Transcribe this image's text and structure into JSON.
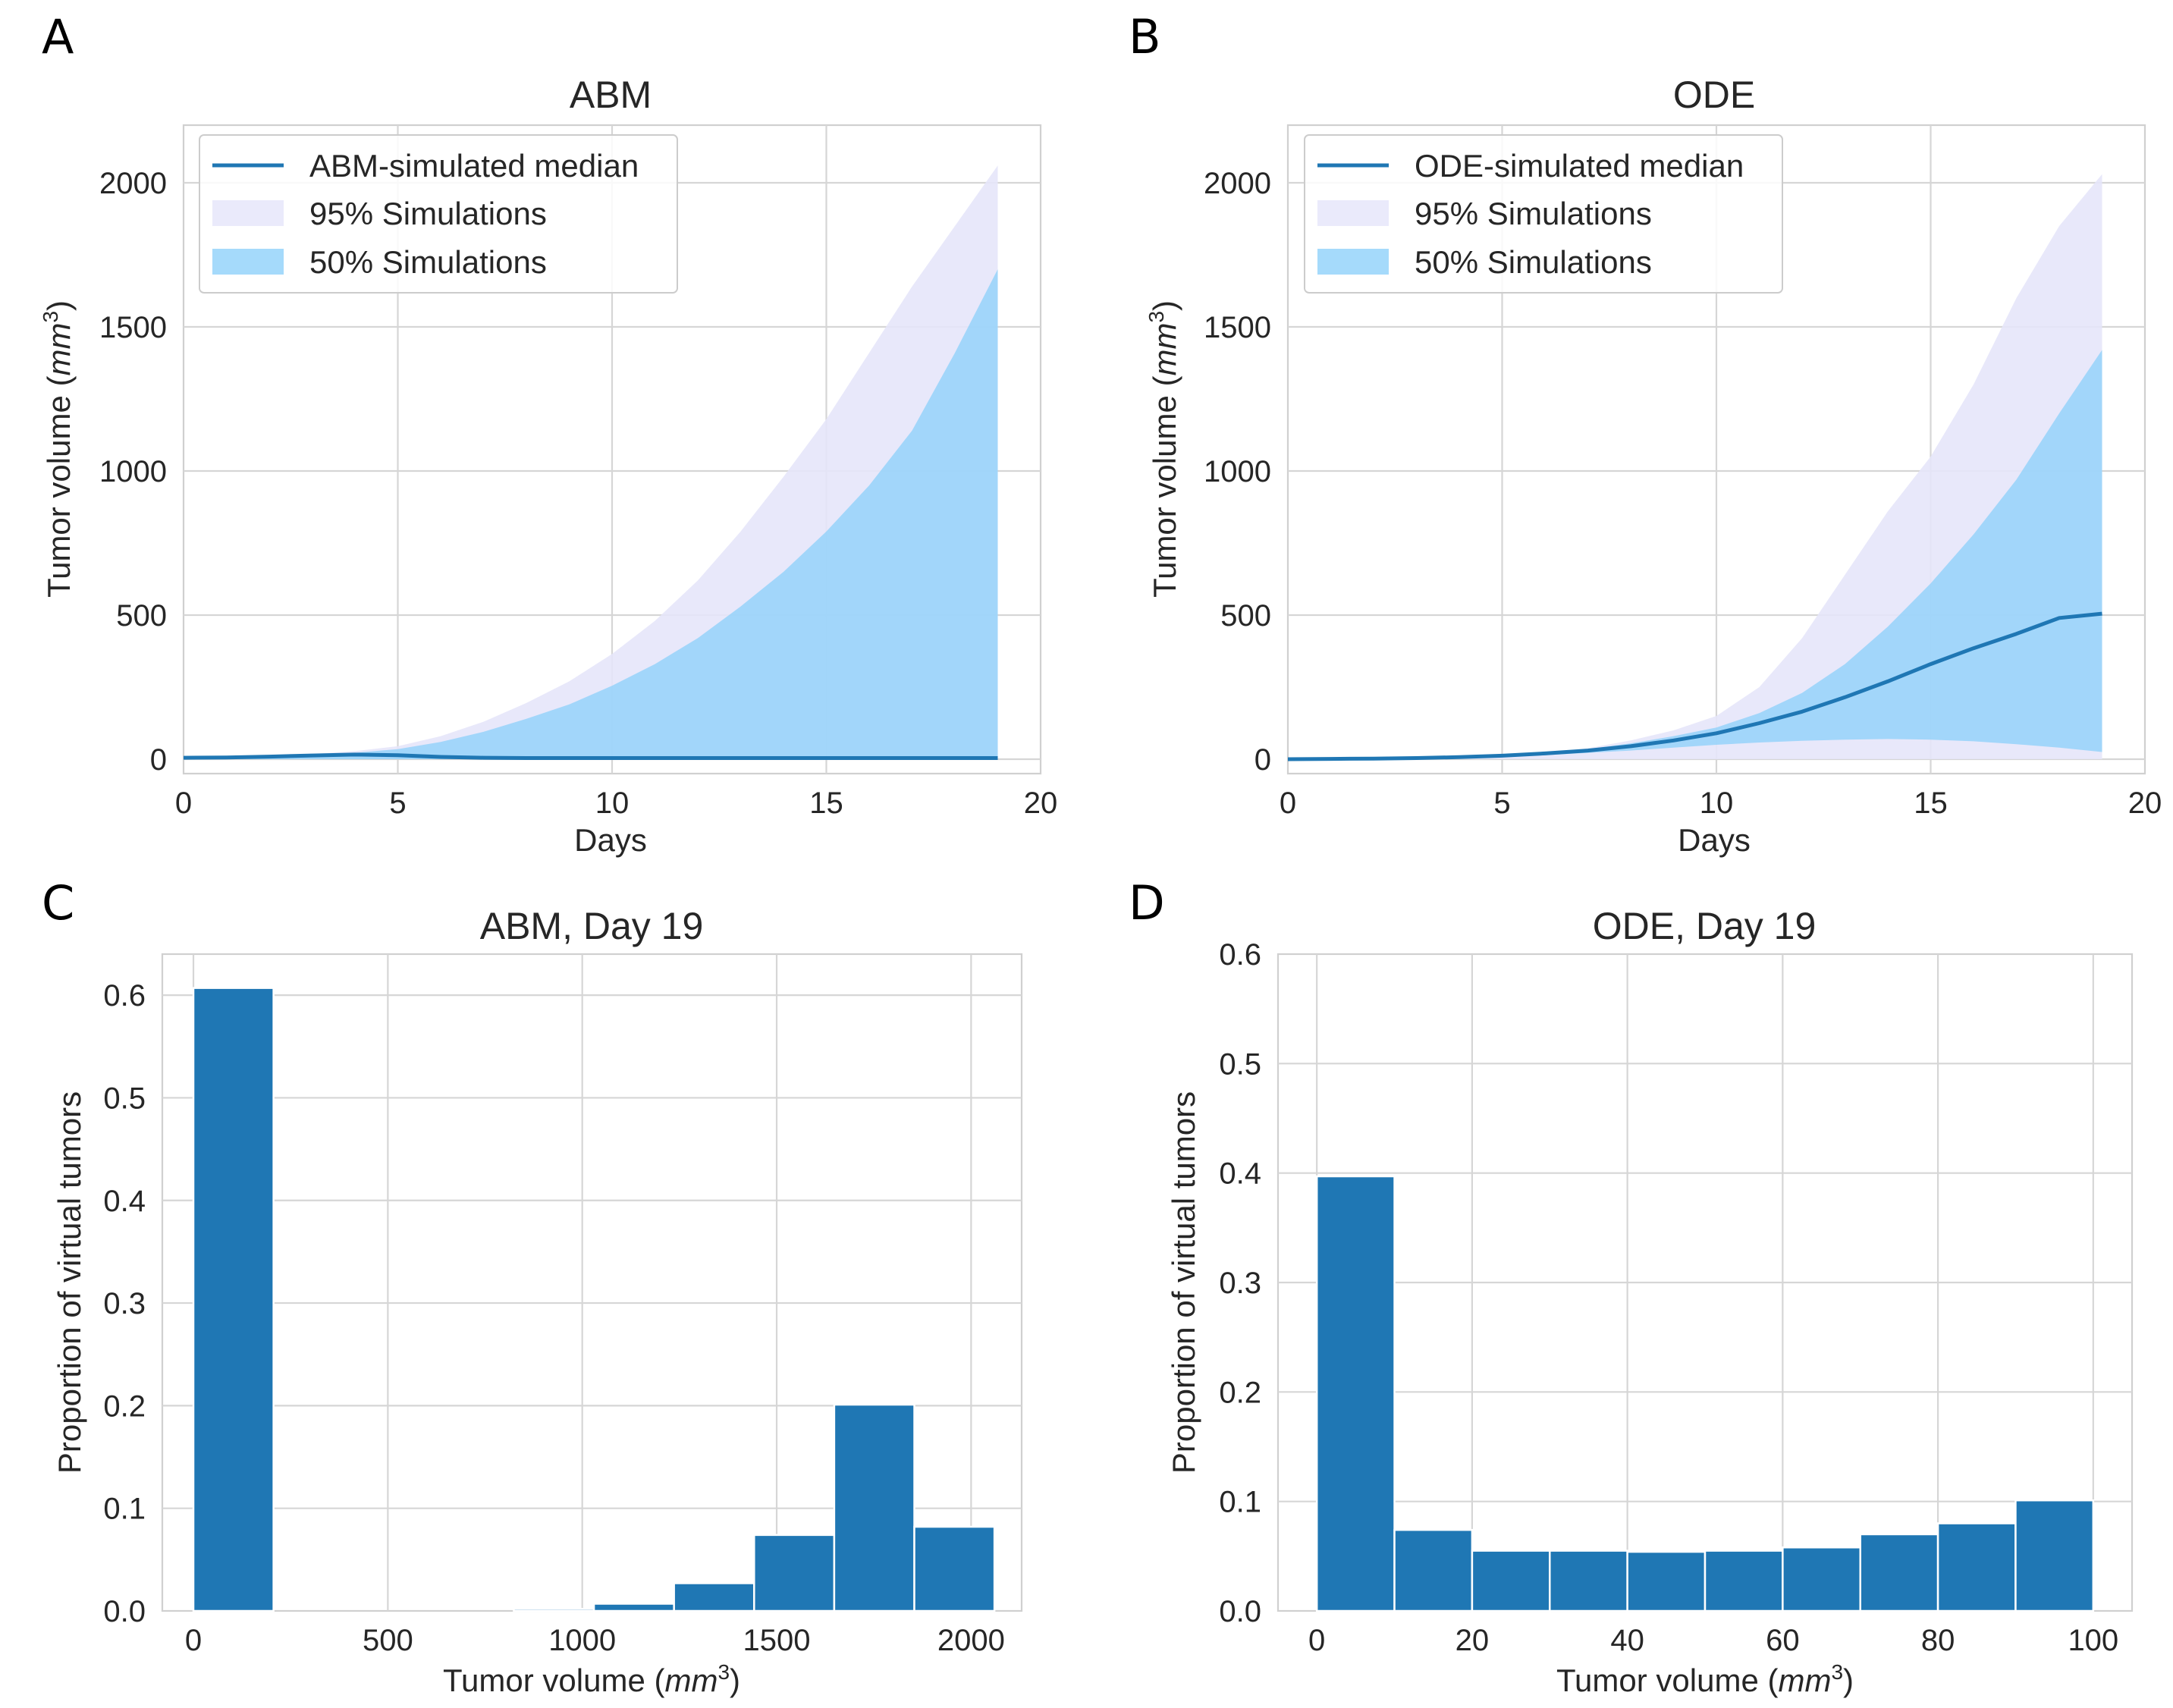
{
  "chart_data": [
    {
      "panel": "A",
      "type": "line",
      "title": "ABM",
      "xlabel": "Days",
      "ylabel_main": "Tumor volume (",
      "ylabel_unit": "mm",
      "ylabel_exp": "3",
      "ylabel_close": ")",
      "xlim": [
        0,
        20
      ],
      "ylim": [
        -50,
        2200
      ],
      "xticks": [
        0,
        5,
        10,
        15,
        20
      ],
      "xtick_labels": [
        "0",
        "5",
        "10",
        "15",
        "20"
      ],
      "yticks": [
        0,
        500,
        1000,
        1500,
        2000
      ],
      "ytick_labels": [
        "0",
        "500",
        "1000",
        "1500",
        "2000"
      ],
      "legend": [
        "ABM-simulated median",
        "95% Simulations",
        "50% Simulations"
      ],
      "legend_position": "upper-left",
      "x": [
        0,
        1,
        2,
        3,
        4,
        5,
        6,
        7,
        8,
        9,
        10,
        11,
        12,
        13,
        14,
        15,
        16,
        17,
        18,
        19
      ],
      "median": [
        5,
        6,
        9,
        13,
        16,
        14,
        8,
        5,
        4,
        4,
        4,
        4,
        4,
        4,
        4,
        4,
        4,
        4,
        4,
        4
      ],
      "band95": {
        "low": [
          0,
          0,
          0,
          0,
          0,
          0,
          0,
          0,
          0,
          0,
          0,
          0,
          0,
          0,
          0,
          0,
          0,
          0,
          0,
          0
        ],
        "high": [
          5,
          7,
          11,
          18,
          28,
          45,
          80,
          130,
          195,
          270,
          365,
          480,
          620,
          790,
          980,
          1180,
          1410,
          1640,
          1850,
          2060
        ]
      },
      "band50": {
        "low": [
          0,
          0,
          0,
          0,
          0,
          0,
          0,
          0,
          0,
          0,
          0,
          0,
          0,
          0,
          0,
          0,
          0,
          0,
          0,
          0
        ],
        "high": [
          5,
          7,
          10,
          15,
          22,
          35,
          60,
          95,
          140,
          190,
          255,
          330,
          420,
          530,
          650,
          790,
          950,
          1140,
          1410,
          1700
        ]
      },
      "colors": {
        "median": "#1f77b4",
        "band95": "#e6e6fa",
        "band50": "#87cefa"
      }
    },
    {
      "panel": "B",
      "type": "line",
      "title": "ODE",
      "xlabel": "Days",
      "ylabel_main": "Tumor volume (",
      "ylabel_unit": "mm",
      "ylabel_exp": "3",
      "ylabel_close": ")",
      "xlim": [
        0,
        20
      ],
      "ylim": [
        -50,
        2200
      ],
      "xticks": [
        0,
        5,
        10,
        15,
        20
      ],
      "xtick_labels": [
        "0",
        "5",
        "10",
        "15",
        "20"
      ],
      "yticks": [
        0,
        500,
        1000,
        1500,
        2000
      ],
      "ytick_labels": [
        "0",
        "500",
        "1000",
        "1500",
        "2000"
      ],
      "legend": [
        "ODE-simulated median",
        "95% Simulations",
        "50% Simulations"
      ],
      "legend_position": "upper-left",
      "x": [
        0,
        1,
        2,
        3,
        4,
        5,
        6,
        7,
        8,
        9,
        10,
        11,
        12,
        13,
        14,
        15,
        16,
        17,
        18,
        19
      ],
      "median": [
        0,
        1,
        2,
        4,
        7,
        12,
        20,
        30,
        45,
        65,
        90,
        125,
        165,
        215,
        270,
        330,
        385,
        435,
        490,
        505
      ],
      "band95": {
        "low": [
          0,
          0,
          0,
          0,
          0,
          0,
          0,
          0,
          0,
          0,
          0,
          0,
          0,
          0,
          0,
          0,
          0,
          0,
          0,
          0
        ],
        "high": [
          0,
          1,
          2,
          4,
          8,
          13,
          22,
          38,
          65,
          100,
          150,
          250,
          420,
          640,
          860,
          1050,
          1300,
          1600,
          1850,
          2030
        ]
      },
      "band50": {
        "low": [
          0,
          0,
          1,
          2,
          4,
          8,
          14,
          22,
          30,
          40,
          50,
          58,
          64,
          68,
          70,
          68,
          62,
          52,
          40,
          25
        ],
        "high": [
          0,
          1,
          2,
          4,
          7,
          12,
          20,
          35,
          55,
          80,
          110,
          160,
          230,
          330,
          460,
          610,
          780,
          970,
          1200,
          1420
        ]
      },
      "colors": {
        "median": "#1f77b4",
        "band95": "#e6e6fa",
        "band50": "#87cefa"
      }
    },
    {
      "panel": "C",
      "type": "bar",
      "title": "ABM, Day 19",
      "xlabel_main": "Tumor volume (",
      "xlabel_unit": "mm",
      "xlabel_exp": "3",
      "xlabel_close": ")",
      "ylabel": "Proportion of virtual tumors",
      "xlim": [
        -80,
        2130
      ],
      "ylim": [
        0,
        0.64
      ],
      "xticks": [
        0,
        500,
        1000,
        1500,
        2000
      ],
      "xtick_labels": [
        "0",
        "500",
        "1000",
        "1500",
        "2000"
      ],
      "yticks": [
        0,
        0.1,
        0.2,
        0.3,
        0.4,
        0.5,
        0.6
      ],
      "ytick_labels": [
        "0.0",
        "0.1",
        "0.2",
        "0.3",
        "0.4",
        "0.5",
        "0.6"
      ],
      "bin_edges": [
        0,
        206,
        412,
        618,
        824,
        1030,
        1236,
        1442,
        1648,
        1854,
        2060
      ],
      "values": [
        0.607,
        0,
        0,
        0,
        0.002,
        0.007,
        0.027,
        0.074,
        0.201,
        0.082
      ],
      "color": "#1f77b4"
    },
    {
      "panel": "D",
      "type": "bar",
      "title": "ODE, Day 19",
      "xlabel_main": "Tumor volume (",
      "xlabel_unit": "mm",
      "xlabel_exp": "3",
      "xlabel_close": ")",
      "ylabel": "Proportion of virtual tumors",
      "xlim": [
        -5,
        105
      ],
      "ylim": [
        0,
        0.6
      ],
      "xticks": [
        0,
        20,
        40,
        60,
        80,
        100
      ],
      "xtick_labels": [
        "0",
        "20",
        "40",
        "60",
        "80",
        "100"
      ],
      "yticks": [
        0,
        0.1,
        0.2,
        0.3,
        0.4,
        0.5,
        0.6
      ],
      "ytick_labels": [
        "0.0",
        "0.1",
        "0.2",
        "0.3",
        "0.4",
        "0.5",
        "0.6"
      ],
      "bin_edges": [
        0,
        10,
        20,
        30,
        40,
        50,
        60,
        70,
        80,
        90,
        100
      ],
      "values": [
        0.397,
        0.074,
        0.055,
        0.055,
        0.054,
        0.055,
        0.058,
        0.07,
        0.08,
        0.101
      ],
      "color": "#1f77b4"
    }
  ]
}
